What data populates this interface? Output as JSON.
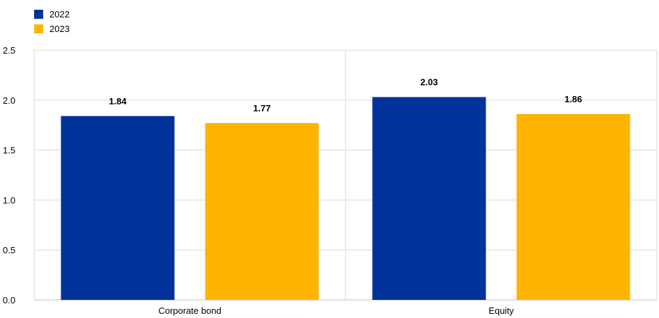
{
  "chart_data": {
    "type": "bar",
    "categories": [
      "Corporate bond",
      "Equity"
    ],
    "series": [
      {
        "name": "2022",
        "values": [
          1.84,
          2.03
        ],
        "color": "#003299"
      },
      {
        "name": "2023",
        "values": [
          1.77,
          1.86
        ],
        "color": "#FFB400"
      }
    ],
    "data_labels": [
      [
        "1.84",
        "2.03"
      ],
      [
        "1.77",
        "1.86"
      ]
    ],
    "yticks": [
      0.0,
      0.5,
      1.0,
      1.5,
      2.0,
      2.5
    ],
    "ytick_labels": [
      "0.0",
      "0.5",
      "1.0",
      "1.5",
      "2.0",
      "2.5"
    ],
    "ylim": [
      0,
      2.5
    ],
    "grid": true,
    "legend_position": "top-left",
    "title": "",
    "xlabel": "",
    "ylabel": ""
  }
}
